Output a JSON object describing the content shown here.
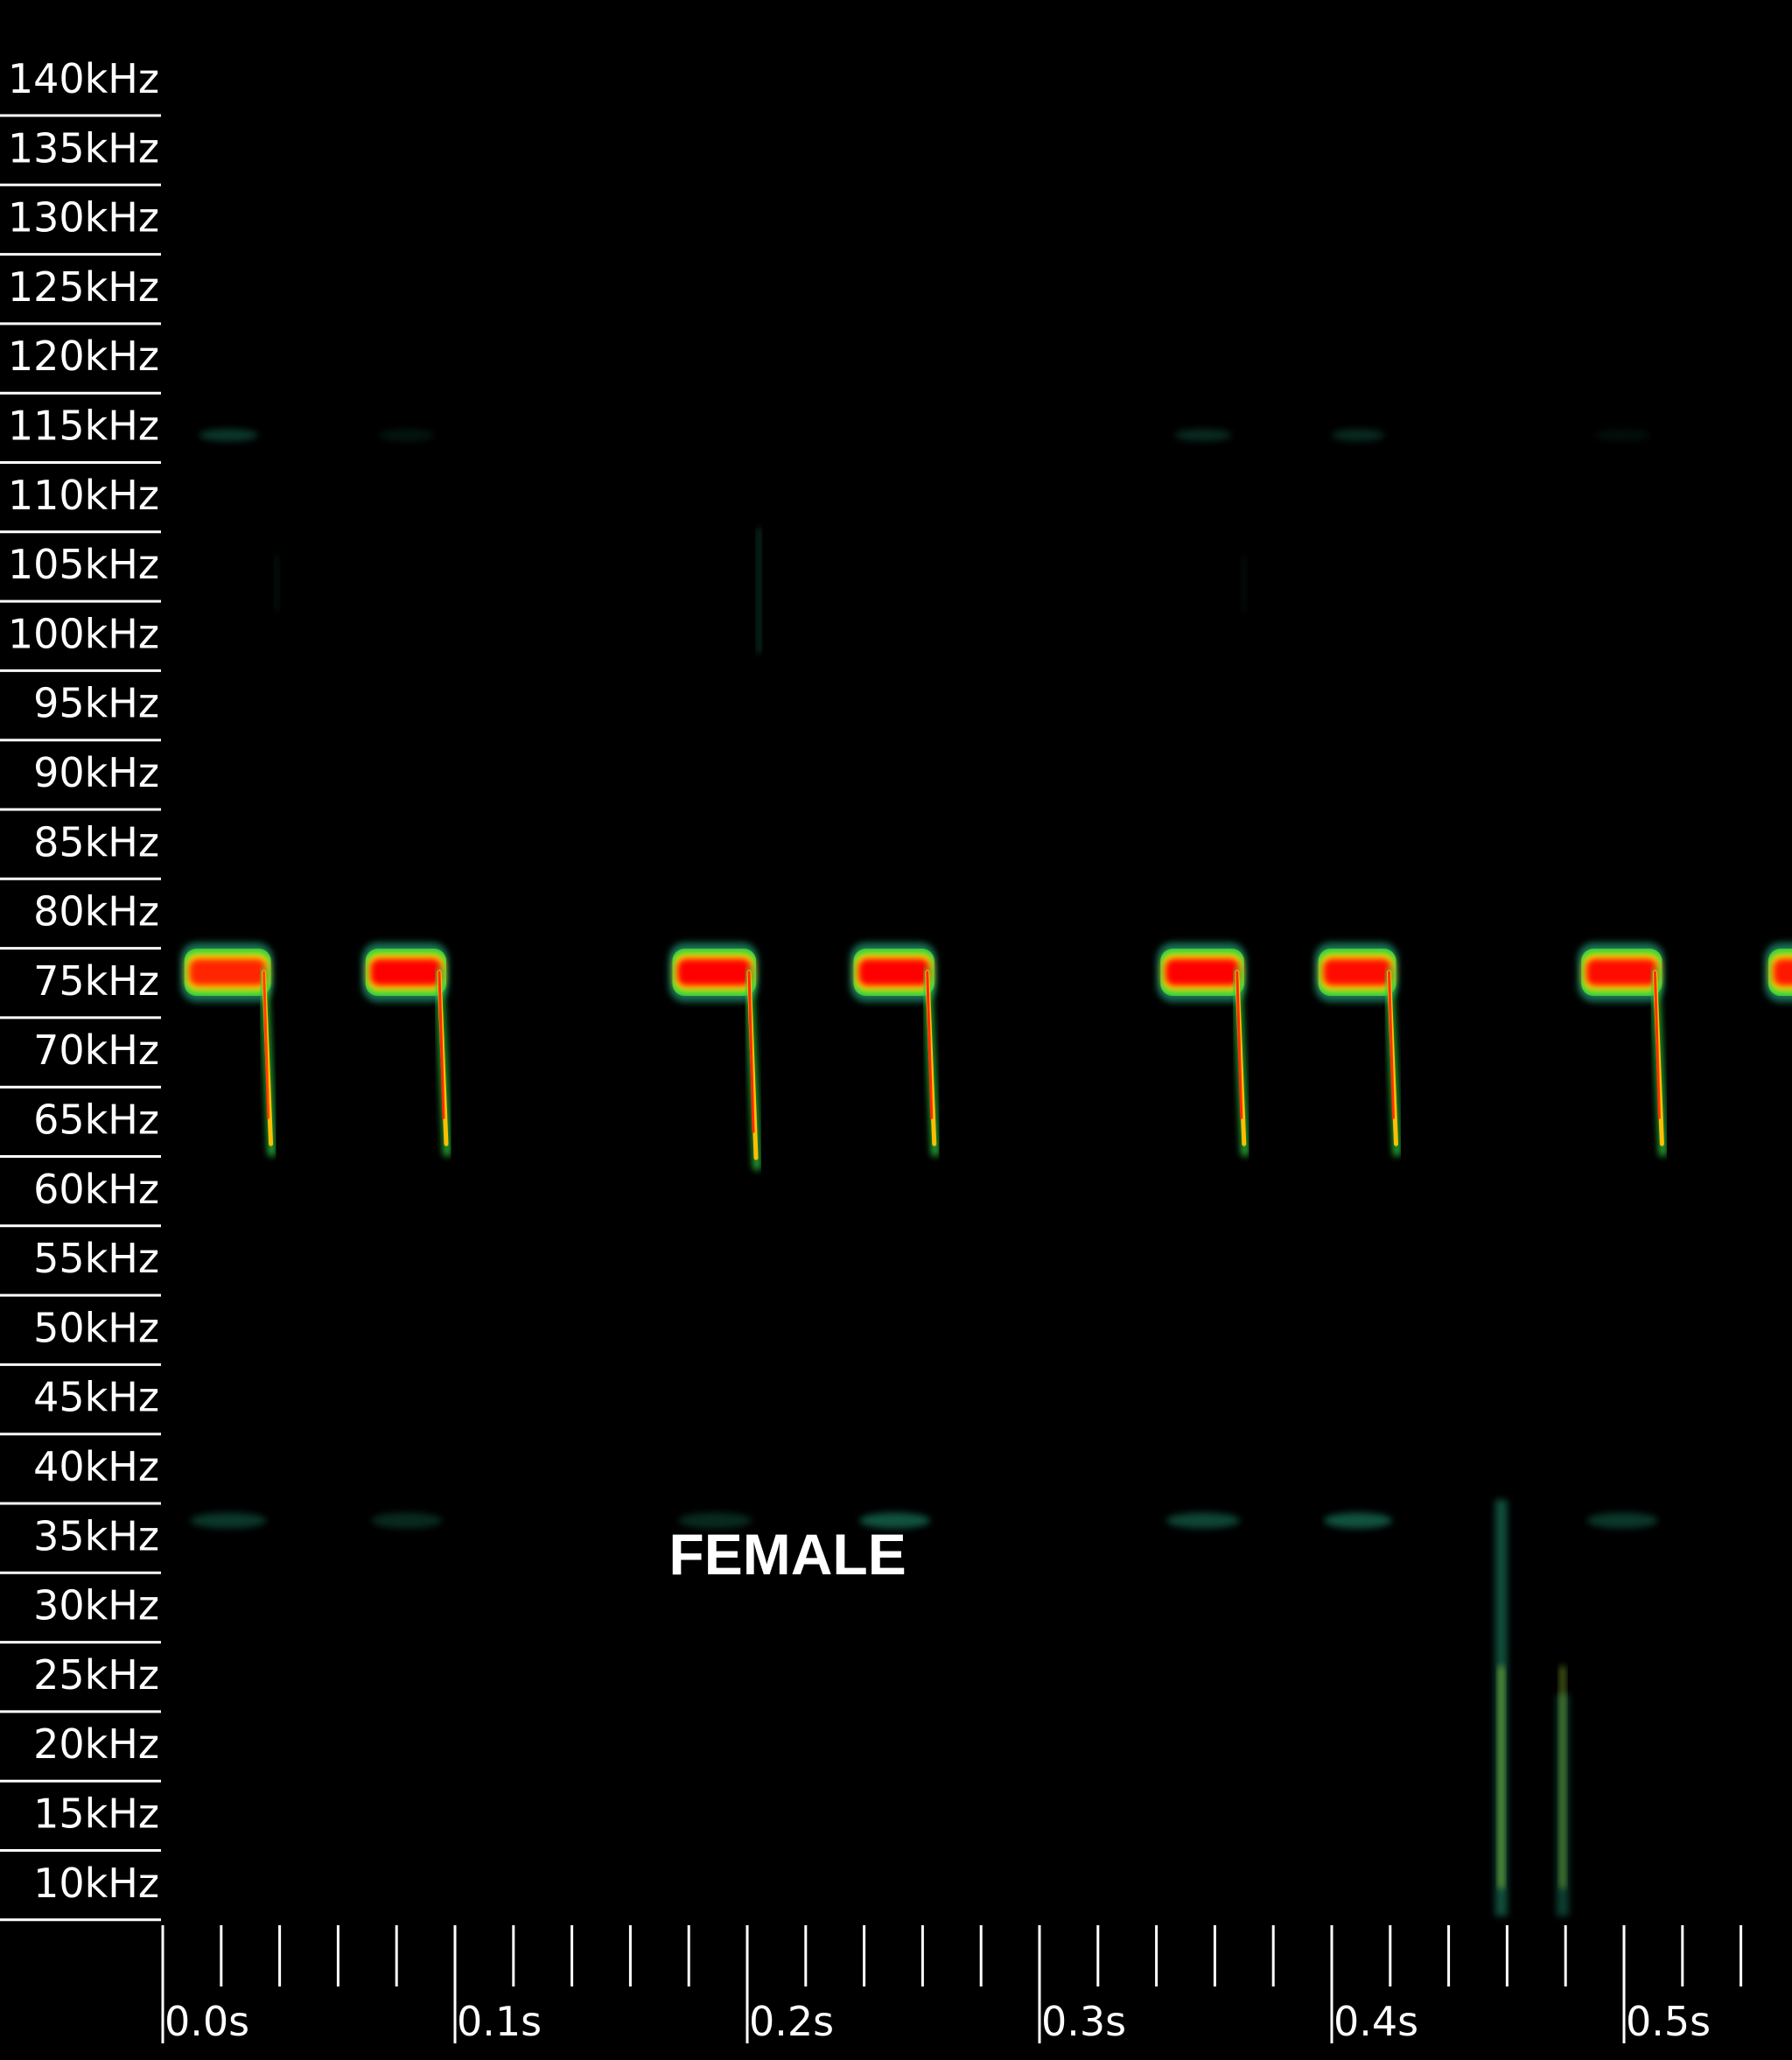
{
  "chart_data": {
    "type": "heatmap",
    "subtype": "spectrogram",
    "title": "",
    "xlabel": "",
    "ylabel": "",
    "x_unit": "s",
    "y_unit": "kHz",
    "xlim": [
      0.0,
      0.545
    ],
    "ylim": [
      5,
      145
    ],
    "x_ticks": [
      0.0,
      0.1,
      0.2,
      0.3,
      0.4,
      0.5
    ],
    "x_tick_labels": [
      "0.0s",
      "0.1s",
      "0.2s",
      "0.3s",
      "0.4s",
      "0.5s"
    ],
    "x_minor_tick_step": 0.02,
    "y_ticks": [
      140,
      135,
      130,
      125,
      120,
      115,
      110,
      105,
      100,
      95,
      90,
      85,
      80,
      75,
      70,
      65,
      60,
      55,
      50,
      45,
      40,
      35,
      30,
      25,
      20,
      15,
      10
    ],
    "y_tick_labels": [
      "140kHz",
      "135kHz",
      "130kHz",
      "125kHz",
      "120kHz",
      "115kHz",
      "110kHz",
      "105kHz",
      "100kHz",
      "95kHz",
      "90kHz",
      "85kHz",
      "80kHz",
      "75kHz",
      "70kHz",
      "65kHz",
      "60kHz",
      "55kHz",
      "50kHz",
      "45kHz",
      "40kHz",
      "35kHz",
      "30kHz",
      "25kHz",
      "20kHz",
      "15kHz",
      "10kHz"
    ],
    "colormap": [
      "#000000",
      "#0b3a3a",
      "#1f8a6a",
      "#2ecc40",
      "#ffff00",
      "#ff0000"
    ],
    "calls": [
      {
        "start": 0.008,
        "end": 0.037,
        "freq_const": 76,
        "freq_end": 63,
        "peak_db": 0.85,
        "harmonic_35": 0.4,
        "harmonic_115": 0.4
      },
      {
        "start": 0.07,
        "end": 0.097,
        "freq_const": 76,
        "freq_end": 63,
        "peak_db": 1.0,
        "harmonic_35": 0.3,
        "harmonic_115": 0.15
      },
      {
        "start": 0.175,
        "end": 0.203,
        "freq_const": 76,
        "freq_end": 62,
        "peak_db": 1.0,
        "harmonic_35": 0.3,
        "harmonic_115": 0.0
      },
      {
        "start": 0.237,
        "end": 0.264,
        "freq_const": 76,
        "freq_end": 63,
        "peak_db": 1.0,
        "harmonic_35": 0.6,
        "harmonic_115": 0.0
      },
      {
        "start": 0.342,
        "end": 0.37,
        "freq_const": 76,
        "freq_end": 63,
        "peak_db": 1.0,
        "harmonic_35": 0.5,
        "harmonic_115": 0.3
      },
      {
        "start": 0.396,
        "end": 0.422,
        "freq_const": 76,
        "freq_end": 63,
        "peak_db": 0.95,
        "harmonic_35": 0.6,
        "harmonic_115": 0.3
      },
      {
        "start": 0.486,
        "end": 0.513,
        "freq_const": 76,
        "freq_end": 63,
        "peak_db": 0.95,
        "harmonic_35": 0.4,
        "harmonic_115": 0.1
      },
      {
        "start": 0.55,
        "end": 0.575,
        "freq_const": 76,
        "freq_end": 63,
        "peak_db": 0.9,
        "harmonic_35": 0.0,
        "harmonic_115": 0.0
      }
    ],
    "noise_bursts": [
      {
        "t": 0.458,
        "f_low": 8,
        "f_high": 38,
        "intensity": 0.7
      },
      {
        "t": 0.479,
        "f_low": 8,
        "f_high": 24,
        "intensity": 0.55
      }
    ],
    "faint_streaks": [
      {
        "t": 0.204,
        "f_low": 99,
        "f_high": 108,
        "intensity": 0.5
      },
      {
        "t": 0.039,
        "f_low": 102,
        "f_high": 106,
        "intensity": 0.2
      },
      {
        "t": 0.37,
        "f_low": 102,
        "f_high": 106,
        "intensity": 0.15
      }
    ],
    "annotations": [
      {
        "text": "FEMALE",
        "t": 0.163,
        "freq": 34
      }
    ]
  },
  "colors": {
    "background": "#000000",
    "axis": "#ffffff",
    "text": "#ffffff"
  }
}
